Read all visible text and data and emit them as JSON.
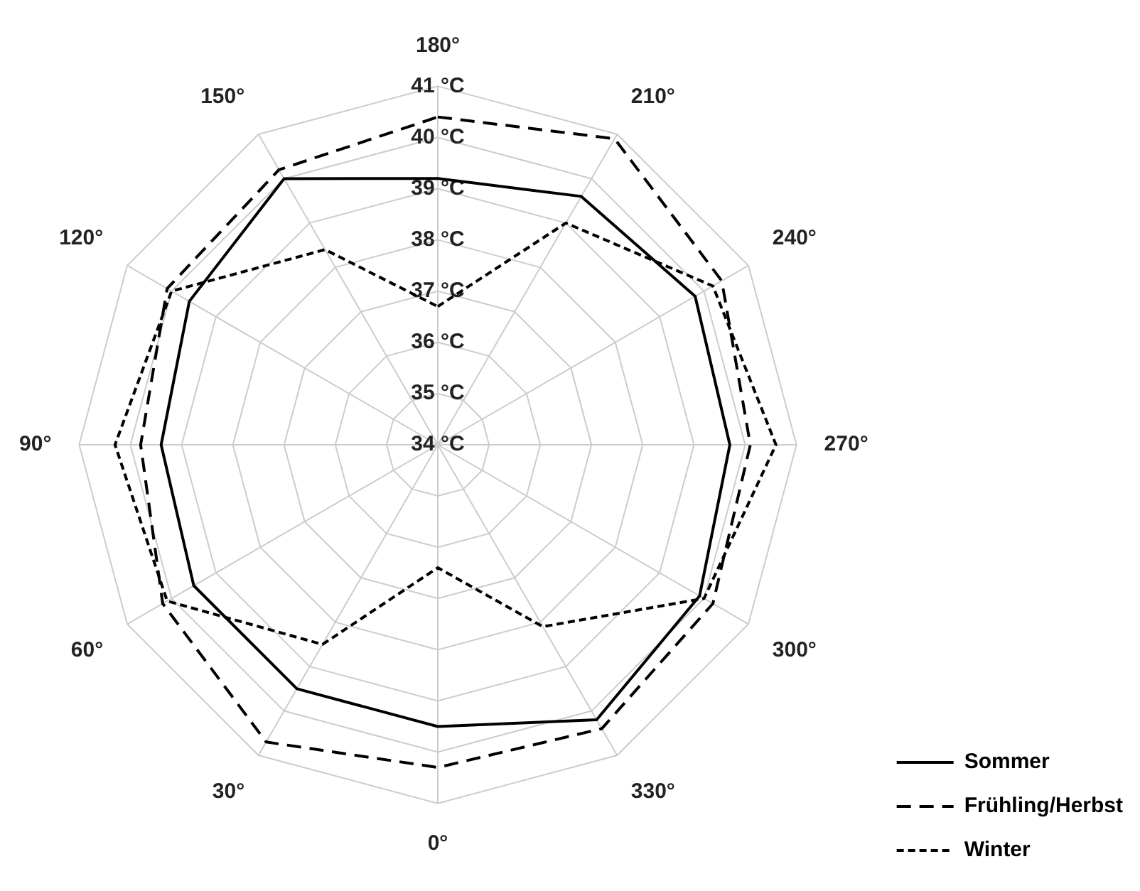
{
  "chart_data": {
    "type": "radar",
    "categories": [
      "180°",
      "210°",
      "240°",
      "270°",
      "300°",
      "330°",
      "0°",
      "30°",
      "60°",
      "90°",
      "120°",
      "150°"
    ],
    "series": [
      {
        "name": "Sommer",
        "color": "#000000",
        "line_style": "solid",
        "values": [
          39.2,
          39.6,
          39.8,
          39.7,
          39.9,
          40.2,
          39.5,
          39.5,
          39.5,
          39.4,
          39.6,
          40.0
        ]
      },
      {
        "name": "Frühling/Herbst",
        "color": "#000000",
        "line_style": "dashed",
        "values": [
          40.4,
          40.9,
          40.4,
          40.1,
          40.2,
          40.4,
          40.3,
          40.7,
          40.2,
          39.8,
          40.1,
          40.2
        ]
      },
      {
        "name": "Winter",
        "color": "#000000",
        "line_style": "dotted",
        "values": [
          36.7,
          39.0,
          40.2,
          40.6,
          40.0,
          38.1,
          36.4,
          38.5,
          40.1,
          40.3,
          40.0,
          38.4
        ]
      }
    ],
    "ylim": [
      34,
      41
    ],
    "yticks": [
      {
        "value": 34,
        "label": "34 °C"
      },
      {
        "value": 35,
        "label": "35 °C"
      },
      {
        "value": 36,
        "label": "36 °C"
      },
      {
        "value": 37,
        "label": "37 °C"
      },
      {
        "value": 38,
        "label": "38 °C"
      },
      {
        "value": 39,
        "label": "39 °C"
      },
      {
        "value": 40,
        "label": "40 °C"
      },
      {
        "value": 41,
        "label": "41 °C"
      }
    ],
    "grid": true,
    "legend": "bottom right",
    "marker": "none"
  }
}
